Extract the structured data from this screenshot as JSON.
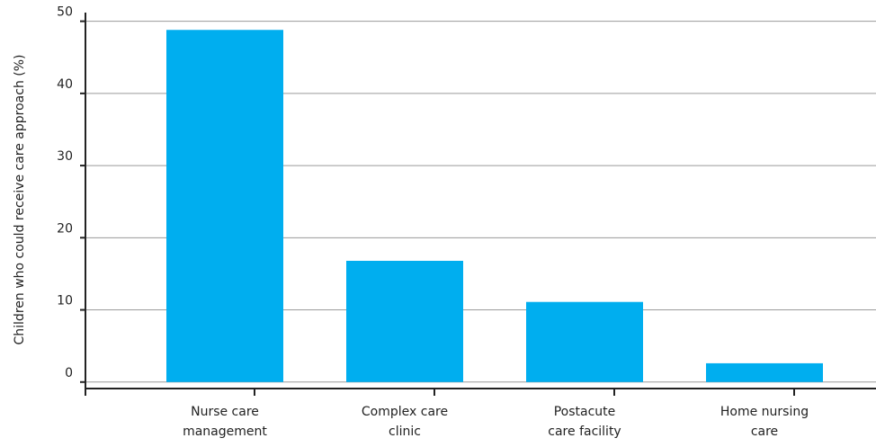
{
  "chart_data": {
    "type": "bar",
    "y_label": "Children who could receive care approach (%)",
    "categories": [
      [
        "Nurse care",
        "management"
      ],
      [
        "Complex care",
        "clinic"
      ],
      [
        "Postacute",
        "care facility"
      ],
      [
        "Home nursing",
        "care"
      ]
    ],
    "values": [
      48.8,
      16.8,
      11.1,
      2.6
    ],
    "color": "#00aeef",
    "ylim": [
      -0.9,
      51.2
    ],
    "yticks": [
      0,
      10,
      20,
      30,
      40,
      50
    ],
    "grid": true
  }
}
